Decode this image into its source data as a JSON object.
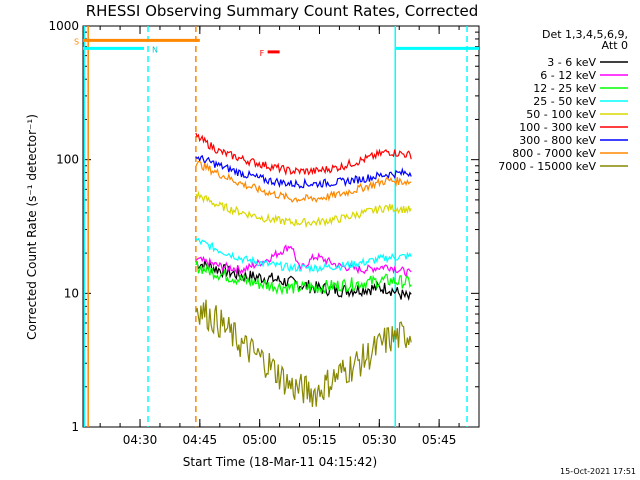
{
  "chart_data": {
    "type": "line",
    "title": "RHESSI Observing Summary Count Rates, Corrected",
    "xlabel": "Start Time (18-Mar-11 04:15:42)",
    "ylabel": "Corrected Count Rate (s⁻¹ detector⁻¹)",
    "x_ticks": [
      "04:30",
      "04:45",
      "05:00",
      "05:15",
      "05:30",
      "05:45"
    ],
    "x_range": [
      "04:15:42",
      "05:55:00"
    ],
    "y_ticks": [
      "1",
      "10",
      "100",
      "1000"
    ],
    "ylim": [
      1,
      1000
    ],
    "y_scale": "log",
    "timestamp": "15-Oct-2021 17:51",
    "legend_header": [
      "Det 1,3,4,5,6,9,",
      "Att 0"
    ],
    "annotations": {
      "saa_label": "S",
      "night_label": "N",
      "flare_label": "F"
    },
    "series": [
      {
        "name": "3 - 6 keV",
        "color": "#000000",
        "x": [
          "04:44",
          "04:50",
          "04:56",
          "05:02",
          "05:08",
          "05:14",
          "05:20",
          "05:26",
          "05:32",
          "05:38"
        ],
        "y": [
          17,
          15,
          13.5,
          13,
          12,
          11,
          10.5,
          10.8,
          11,
          9
        ]
      },
      {
        "name": "6 - 12 keV",
        "color": "#ff00ff",
        "x": [
          "04:44",
          "04:50",
          "04:56",
          "05:02",
          "05:08",
          "05:10",
          "05:14",
          "05:20",
          "05:26",
          "05:32",
          "05:38"
        ],
        "y": [
          18,
          16,
          15,
          18,
          23,
          15,
          19,
          16,
          15,
          16,
          14
        ]
      },
      {
        "name": "12 - 25 keV",
        "color": "#00ff00",
        "x": [
          "04:44",
          "04:50",
          "04:56",
          "05:02",
          "05:08",
          "05:14",
          "05:20",
          "05:26",
          "05:32",
          "05:38"
        ],
        "y": [
          16,
          14,
          12.5,
          11.5,
          11,
          11,
          11.5,
          12,
          12.5,
          12
        ]
      },
      {
        "name": "25 - 50 keV",
        "color": "#00ffff",
        "x": [
          "04:44",
          "04:50",
          "04:56",
          "05:02",
          "05:08",
          "05:14",
          "05:20",
          "05:26",
          "05:32",
          "05:38"
        ],
        "y": [
          25,
          21,
          18,
          16.5,
          15.5,
          15.5,
          16,
          17,
          18.5,
          19
        ]
      },
      {
        "name": "50 - 100 keV",
        "color": "#d8d800",
        "x": [
          "04:44",
          "04:50",
          "04:56",
          "05:02",
          "05:08",
          "05:14",
          "05:20",
          "05:26",
          "05:32",
          "05:38"
        ],
        "y": [
          55,
          45,
          40,
          36,
          34,
          34,
          36,
          40,
          44,
          42
        ]
      },
      {
        "name": "100 - 300 keV",
        "color": "#ff0000",
        "x": [
          "04:44",
          "04:50",
          "04:56",
          "05:02",
          "05:08",
          "05:14",
          "05:20",
          "05:26",
          "05:32",
          "05:38"
        ],
        "y": [
          150,
          115,
          100,
          90,
          82,
          82,
          88,
          100,
          115,
          108
        ]
      },
      {
        "name": "300 - 800 keV",
        "color": "#0000ff",
        "x": [
          "04:44",
          "04:50",
          "04:56",
          "05:02",
          "05:08",
          "05:14",
          "05:20",
          "05:26",
          "05:32",
          "05:38"
        ],
        "y": [
          105,
          90,
          78,
          70,
          66,
          66,
          68,
          72,
          78,
          80
        ]
      },
      {
        "name": "800 - 7000 keV",
        "color": "#ff8800",
        "x": [
          "04:44",
          "04:50",
          "04:56",
          "05:02",
          "05:08",
          "05:14",
          "05:20",
          "05:26",
          "05:32",
          "05:38"
        ],
        "y": [
          95,
          78,
          65,
          57,
          51,
          51,
          55,
          62,
          70,
          68
        ]
      },
      {
        "name": "7000 - 15000 keV",
        "color": "#888800",
        "x": [
          "04:44",
          "04:50",
          "04:56",
          "05:02",
          "05:08",
          "05:14",
          "05:20",
          "05:26",
          "05:32",
          "05:38"
        ],
        "y": [
          8,
          6,
          4,
          3,
          2,
          1.8,
          2.5,
          3.2,
          4.5,
          5
        ]
      }
    ],
    "overlay_lines": [
      {
        "name": "saa",
        "color": "#ff8800",
        "x": [
          "04:15:42",
          "04:45"
        ],
        "y": 780
      },
      {
        "name": "night-1",
        "color": "#00ffff",
        "x": [
          "04:15:42",
          "04:31"
        ],
        "y": 680
      },
      {
        "name": "night-2",
        "color": "#00ffff",
        "x": [
          "05:34",
          "05:55:00"
        ],
        "y": 680
      }
    ],
    "vertical_lines": [
      {
        "color": "#ff8800",
        "x": "04:17",
        "style": "solid"
      },
      {
        "color": "#00ffff",
        "x": "04:16",
        "style": "solid"
      },
      {
        "color": "#00ffff",
        "x": "04:32",
        "style": "dash"
      },
      {
        "color": "#ff8800",
        "x": "04:44",
        "style": "dash"
      },
      {
        "color": "#00ffff",
        "x": "05:34",
        "style": "solid"
      },
      {
        "color": "#00ffff",
        "x": "05:52",
        "style": "dash"
      }
    ],
    "flare_marker": {
      "x": [
        "05:02",
        "05:05"
      ],
      "y": 640,
      "color": "#ff0000"
    }
  }
}
